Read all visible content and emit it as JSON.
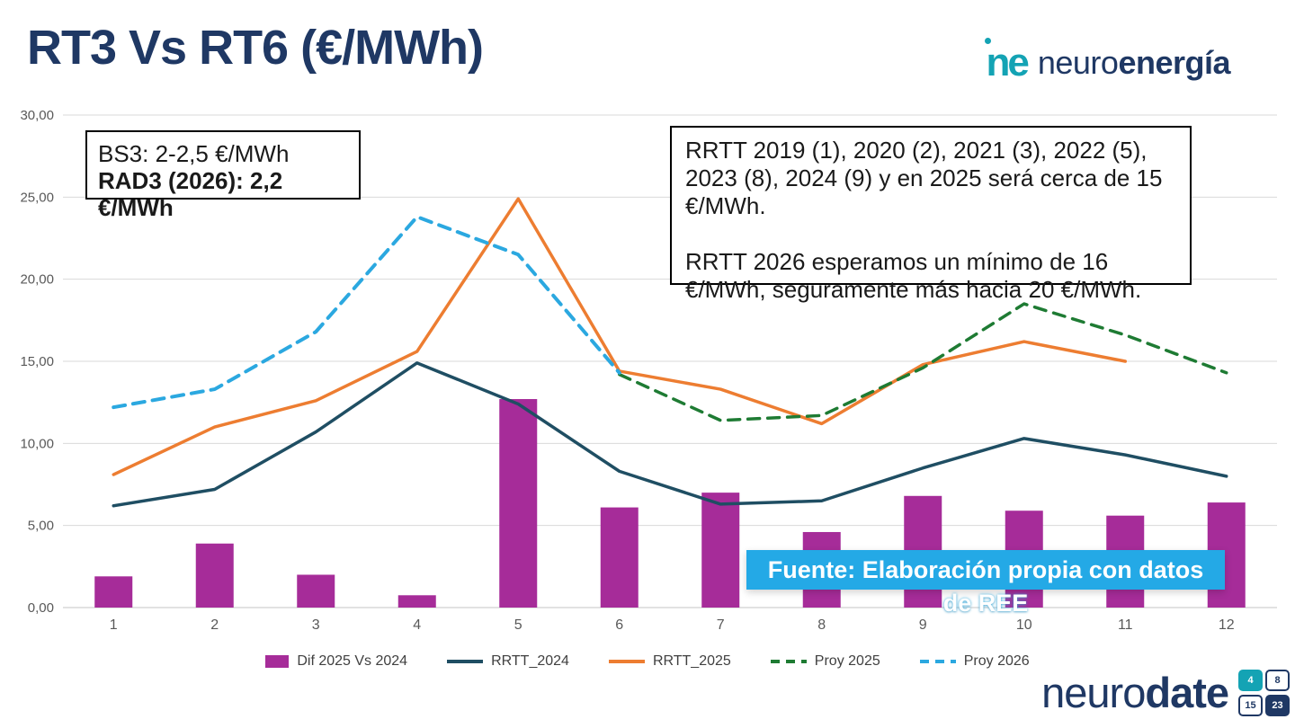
{
  "page": {
    "title": "RT3 Vs RT6 (€/MWh)"
  },
  "logo": {
    "prefix": "neuro",
    "suffix": "energía",
    "accent_color": "#14A3B4",
    "navy_color": "#1F3864"
  },
  "annotations": {
    "left_box": {
      "line1": "BS3: 2-2,5 €/MWh",
      "line2": "RAD3 (2026): 2,2",
      "line3": "€/MWh"
    },
    "right_box": {
      "paragraph1": "RRTT 2019 (1), 2020 (2), 2021 (3), 2022 (5), 2023 (8), 2024 (9) y en 2025 será cerca de 15 €/MWh.",
      "paragraph2": "RRTT 2026 esperamos un mínimo de 16 €/MWh, seguramente más hacia 20 €/MWh."
    },
    "source_line1": "Fuente: Elaboración propia con datos",
    "source_line2": "de REE",
    "source_banner_color": "#24A9E6"
  },
  "footer": {
    "brand_prefix": "neuro",
    "brand_suffix": "date",
    "calendar": [
      "4",
      "8",
      "15",
      "23"
    ]
  },
  "chart_data": {
    "type": "combo (bar + line)",
    "categories": [
      "1",
      "2",
      "3",
      "4",
      "5",
      "6",
      "7",
      "8",
      "9",
      "10",
      "11",
      "12"
    ],
    "bar_series": {
      "name": "Dif 2025 Vs 2024",
      "color": "#A62C99",
      "values": [
        1.9,
        3.9,
        2.0,
        0.75,
        12.7,
        6.1,
        7.0,
        4.6,
        6.8,
        5.9,
        5.6,
        6.4
      ]
    },
    "line_series": [
      {
        "name": "RRTT_2024",
        "color": "#1F4E63",
        "dash": false,
        "stroke_width": 3.5,
        "values": [
          6.2,
          7.2,
          10.7,
          14.9,
          12.4,
          8.3,
          6.3,
          6.5,
          8.5,
          10.3,
          9.3,
          8.0
        ]
      },
      {
        "name": "RRTT_2025",
        "color": "#ED7D31",
        "dash": false,
        "stroke_width": 3.5,
        "values": [
          8.1,
          11.0,
          12.6,
          15.6,
          24.9,
          14.4,
          13.3,
          11.2,
          14.8,
          16.2,
          15.0,
          null
        ]
      },
      {
        "name": "Proy 2025",
        "color": "#1E7B33",
        "dash": true,
        "stroke_width": 3.5,
        "values": [
          null,
          null,
          null,
          null,
          null,
          14.2,
          11.4,
          11.7,
          14.6,
          18.5,
          16.6,
          14.3
        ]
      },
      {
        "name": "Proy 2026",
        "color": "#2BA8E0",
        "dash": true,
        "stroke_width": 4,
        "values": [
          12.2,
          13.3,
          16.8,
          23.8,
          21.5,
          14.3,
          null,
          null,
          null,
          null,
          null,
          null
        ]
      }
    ],
    "ylim": [
      0,
      30
    ],
    "ytick_step": 5,
    "ytick_labels": [
      "0,00",
      "5,00",
      "10,00",
      "15,00",
      "20,00",
      "25,00",
      "30,00"
    ],
    "xlabel": "",
    "ylabel": "",
    "grid": true,
    "gridline_color": "#D9D9D9",
    "axis_text_color": "#595959",
    "legend_position": "bottom"
  }
}
